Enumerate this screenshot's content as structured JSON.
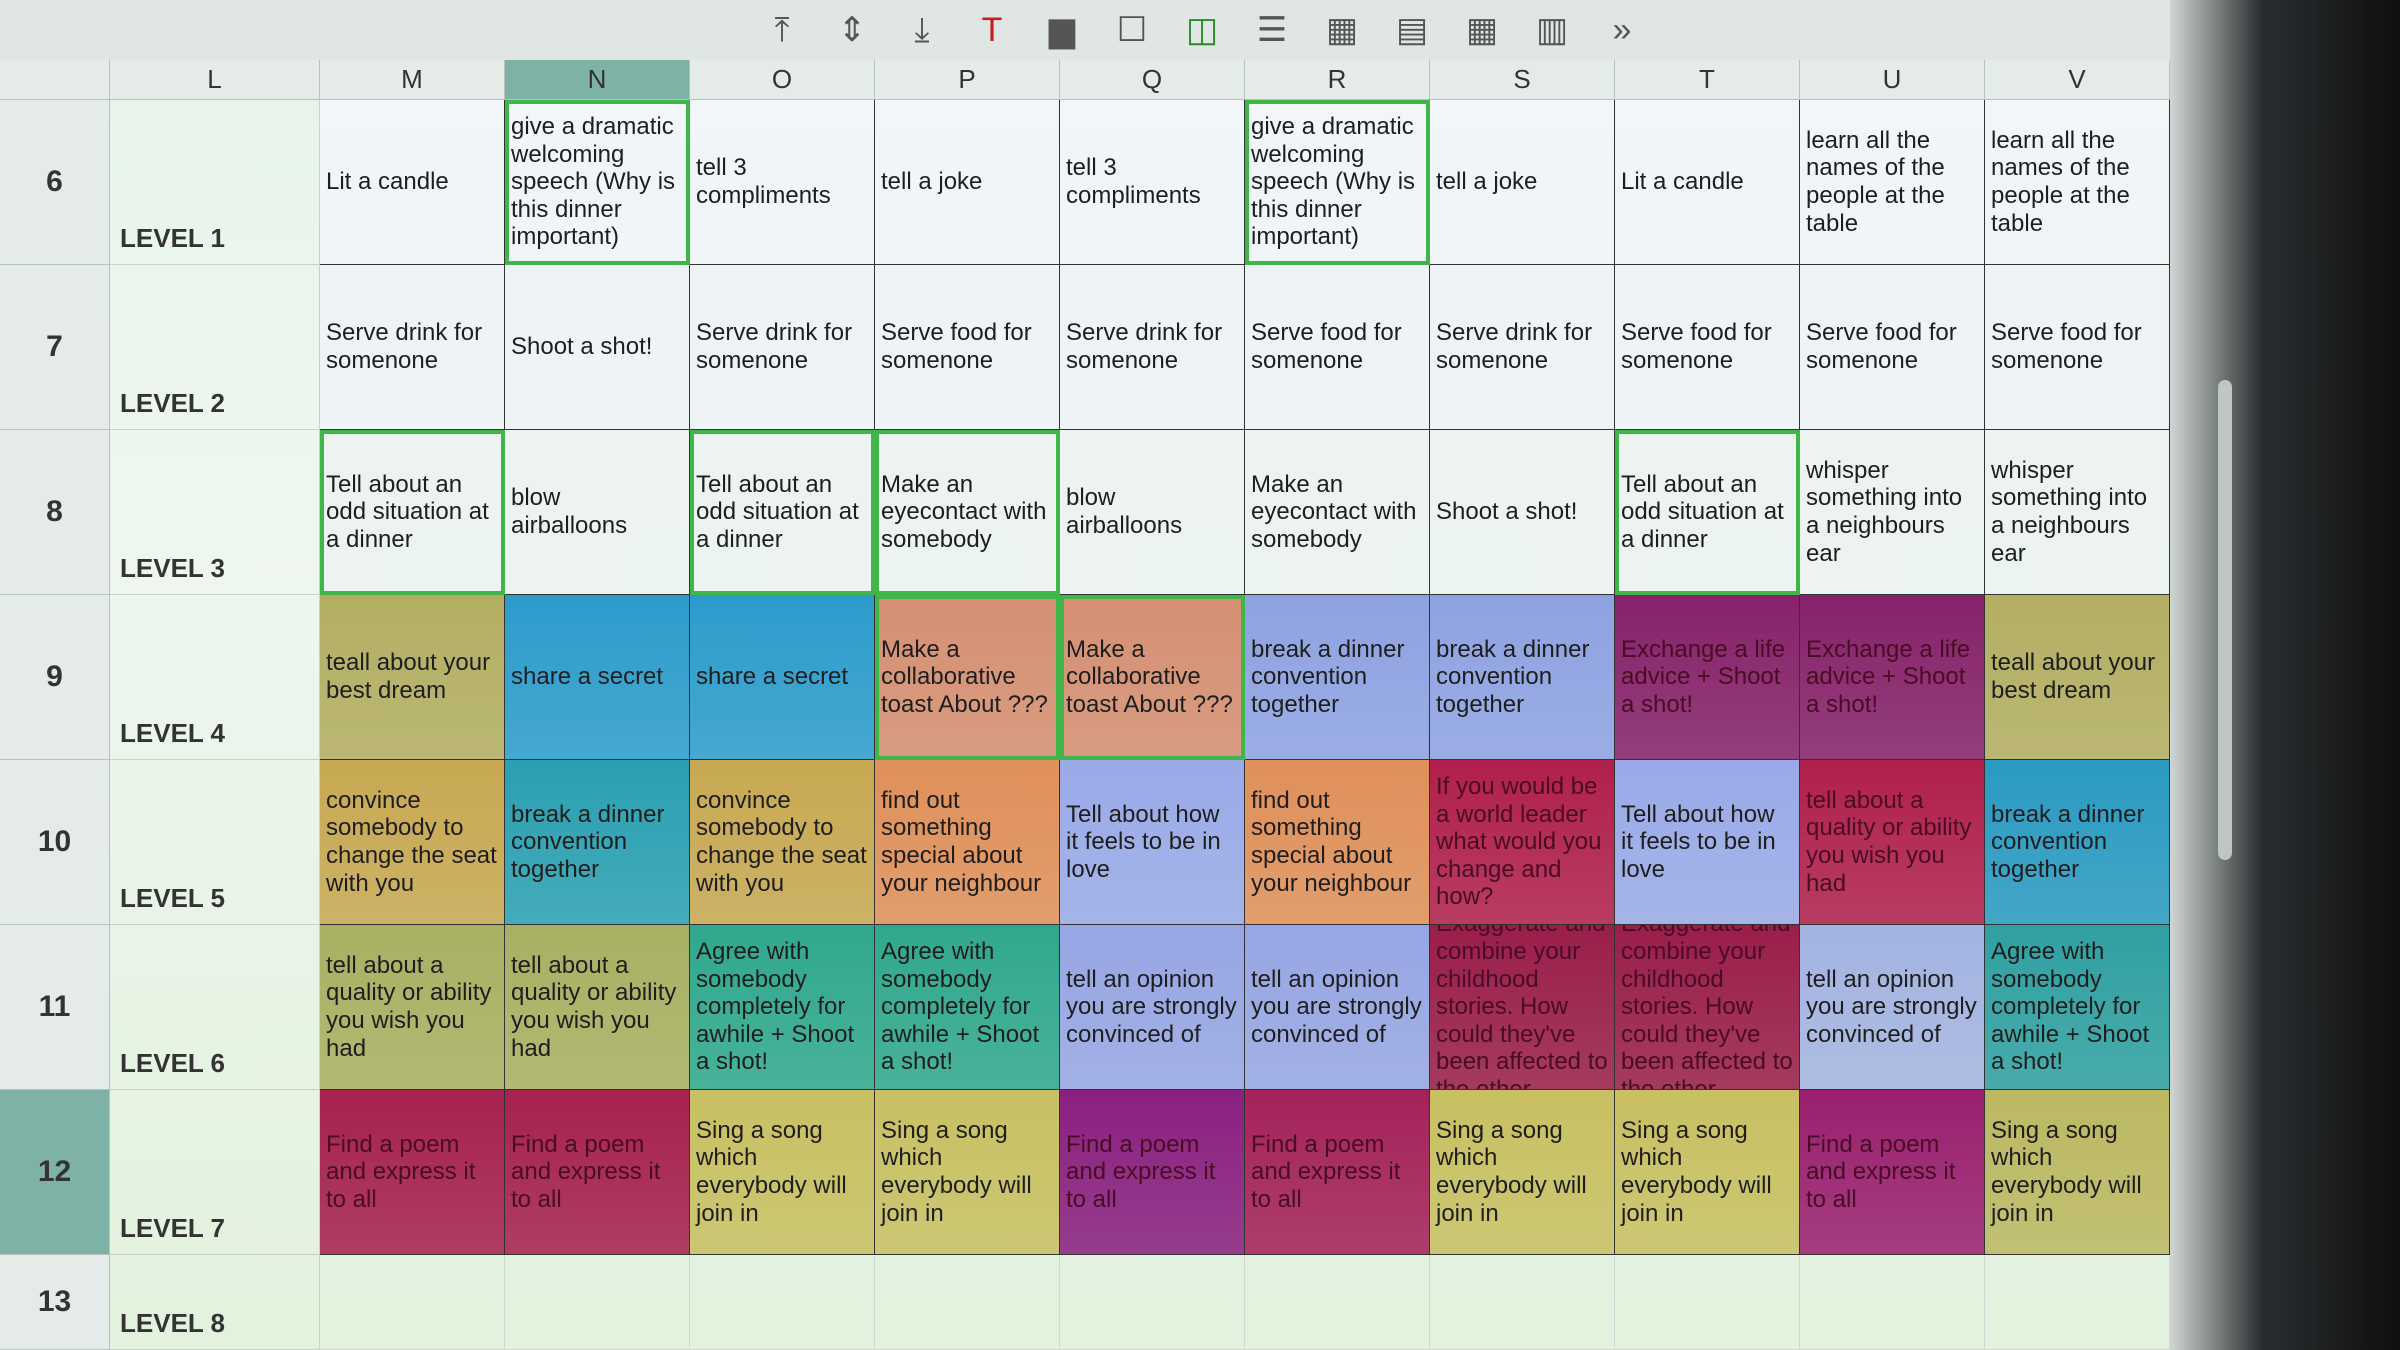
{
  "toolbar": {
    "icons": [
      "align-top-icon",
      "align-middle-icon",
      "align-bottom-icon",
      "font-color-icon",
      "fill-color-icon",
      "borders-icon",
      "border-color-icon",
      "border-style-icon",
      "table-icon",
      "freeze-icon",
      "grid-icon",
      "sheet-icon",
      "more-icon"
    ]
  },
  "columns": [
    "L",
    "M",
    "N",
    "O",
    "P",
    "Q",
    "R",
    "S",
    "T",
    "U",
    "V"
  ],
  "selected_column": "N",
  "rows": [
    {
      "num": "6",
      "level": "LEVEL 1",
      "cells": [
        {
          "text": "Lit a candle",
          "bg": "#f1f6f8"
        },
        {
          "text": "give a dramatic welcoming speech (Why is this dinner important)",
          "bg": "#f1f6f8",
          "sel": true
        },
        {
          "text": "tell 3 compliments",
          "bg": "#f1f6f8"
        },
        {
          "text": "tell a joke",
          "bg": "#f1f6f8"
        },
        {
          "text": "tell 3 compliments",
          "bg": "#f1f6f8"
        },
        {
          "text": "give a dramatic welcoming speech (Why is this dinner important)",
          "bg": "#f1f6f8",
          "sel": true
        },
        {
          "text": "tell a joke",
          "bg": "#f1f6f8"
        },
        {
          "text": "Lit a candle",
          "bg": "#f1f6f8"
        },
        {
          "text": "learn all the names of the people at the table",
          "bg": "#f1f6f8"
        },
        {
          "text": "learn all the names of the people at the table",
          "bg": "#f1f6f8"
        }
      ]
    },
    {
      "num": "7",
      "level": "LEVEL 2",
      "cells": [
        {
          "text": "Serve drink for somenone",
          "bg": "#eef4f6"
        },
        {
          "text": "Shoot a shot!",
          "bg": "#eef4f6"
        },
        {
          "text": "Serve drink for somenone",
          "bg": "#eef4f6"
        },
        {
          "text": "Serve food for somenone",
          "bg": "#eef4f6"
        },
        {
          "text": "Serve drink for somenone",
          "bg": "#eef4f6"
        },
        {
          "text": "Serve food for somenone",
          "bg": "#eef4f6"
        },
        {
          "text": "Serve drink for somenone",
          "bg": "#eef4f6"
        },
        {
          "text": "Serve food for somenone",
          "bg": "#eef4f6"
        },
        {
          "text": "Serve food for somenone",
          "bg": "#eef4f6"
        },
        {
          "text": "Serve food for somenone",
          "bg": "#eef4f6"
        }
      ]
    },
    {
      "num": "8",
      "level": "LEVEL 3",
      "cells": [
        {
          "text": "Tell about an odd situation at a dinner",
          "bg": "#ecf3f1",
          "sel": true
        },
        {
          "text": "blow airballoons",
          "bg": "#ecf3f1"
        },
        {
          "text": "Tell about an odd situation at a dinner",
          "bg": "#ecf3f1",
          "sel": true
        },
        {
          "text": "Make an eyecontact with somebody",
          "bg": "#ecf3f1",
          "sel": true
        },
        {
          "text": "blow airballoons",
          "bg": "#ecf3f1"
        },
        {
          "text": "Make an eyecontact with somebody",
          "bg": "#ecf3f1"
        },
        {
          "text": "Shoot a shot!",
          "bg": "#ecf3f1"
        },
        {
          "text": "Tell about an odd situation at a dinner",
          "bg": "#ecf3f1",
          "sel": true
        },
        {
          "text": "whisper something into a neighbours ear",
          "bg": "#ecf3f1"
        },
        {
          "text": "whisper something into a neighbours ear",
          "bg": "#ecf3f1"
        }
      ]
    },
    {
      "num": "9",
      "level": "LEVEL 4",
      "cells": [
        {
          "text": "teall about your best dream",
          "bg": "#b3ae62"
        },
        {
          "text": "share a secret",
          "bg": "#2c9ccc"
        },
        {
          "text": "share a secret",
          "bg": "#2c9ccc"
        },
        {
          "text": "Make a collaborative toast About ???",
          "bg": "#d58f72",
          "sel": true
        },
        {
          "text": "Make a collaborative toast About ???",
          "bg": "#d58f72",
          "sel": true
        },
        {
          "text": "break a dinner convention together",
          "bg": "#8ea2e2"
        },
        {
          "text": "break a dinner convention together",
          "bg": "#8ea2e2"
        },
        {
          "text": "Exchange a life advice + Shoot a shot!",
          "bg": "#86226a",
          "dark": true
        },
        {
          "text": "Exchange a life advice + Shoot a shot!",
          "bg": "#86226a",
          "dark": true
        },
        {
          "text": "teall about your best dream",
          "bg": "#b3ae62"
        }
      ]
    },
    {
      "num": "10",
      "level": "LEVEL 5",
      "cells": [
        {
          "text": "convince somebody to change the seat with you",
          "bg": "#c8a852"
        },
        {
          "text": "break a dinner convention together",
          "bg": "#2aa0b2"
        },
        {
          "text": "convince somebody to change the seat with you",
          "bg": "#c8a852"
        },
        {
          "text": "find out something special about your neighbour",
          "bg": "#e0905a"
        },
        {
          "text": "Tell about how it feels to be in love",
          "bg": "#9aaae8"
        },
        {
          "text": "find out something special about your neighbour",
          "bg": "#e0905a"
        },
        {
          "text": "If you would be a world leader what would you change and how?",
          "bg": "#b0204c",
          "dark": true
        },
        {
          "text": "Tell about how it feels to be in love",
          "bg": "#9aaae8"
        },
        {
          "text": "tell about a quality or ability you wish you had",
          "bg": "#b0204c",
          "dark": true
        },
        {
          "text": "break a dinner convention together",
          "bg": "#2a9ac2"
        }
      ]
    },
    {
      "num": "11",
      "level": "LEVEL 6",
      "cells": [
        {
          "text": "tell about a quality or ability you wish you had",
          "bg": "#a9b062"
        },
        {
          "text": "tell about a quality or ability you wish you had",
          "bg": "#a9b062"
        },
        {
          "text": "Agree with somebody completely for awhile + Shoot a shot!",
          "bg": "#30a88e"
        },
        {
          "text": "Agree with somebody completely for awhile + Shoot a shot!",
          "bg": "#30a88e"
        },
        {
          "text": "tell an opinion you are strongly convinced of",
          "bg": "#97a6e4"
        },
        {
          "text": "tell an opinion you are strongly convinced of",
          "bg": "#97a6e4"
        },
        {
          "text": "Exaggerate and combine your childhood stories. How could they've been affected to the other",
          "bg": "#9a1e4a",
          "dark": true
        },
        {
          "text": "Exaggerate and combine your childhood stories. How could they've been affected to the other",
          "bg": "#9a1e4a",
          "dark": true
        },
        {
          "text": "tell an opinion you are strongly convinced of",
          "bg": "#a4b4e2"
        },
        {
          "text": "Agree with somebody completely for awhile + Shoot a shot!",
          "bg": "#30a0a2"
        }
      ]
    },
    {
      "num": "12",
      "level": "LEVEL 7",
      "cells": [
        {
          "text": "Find a poem and express it to all",
          "bg": "#a6214f",
          "dark": true
        },
        {
          "text": "Find a poem and express it to all",
          "bg": "#a6214f",
          "dark": true
        },
        {
          "text": "Sing a song which everybody will join in",
          "bg": "#c8c062"
        },
        {
          "text": "Sing a song which everybody will join in",
          "bg": "#c8c062"
        },
        {
          "text": "Find a poem and express it to all",
          "bg": "#8a2080",
          "dark": true
        },
        {
          "text": "Find a poem and express it to all",
          "bg": "#a4225a",
          "dark": true
        },
        {
          "text": "Sing a song which everybody will join in",
          "bg": "#c8c062"
        },
        {
          "text": "Sing a song which everybody will join in",
          "bg": "#c8c062"
        },
        {
          "text": "Find a poem and express it to all",
          "bg": "#9a2070",
          "dark": true
        },
        {
          "text": "Sing a song which everybody will join in",
          "bg": "#bcb862"
        }
      ]
    },
    {
      "num": "13",
      "level": "LEVEL 8",
      "cells": [
        {
          "text": ""
        },
        {
          "text": ""
        },
        {
          "text": ""
        },
        {
          "text": ""
        },
        {
          "text": ""
        },
        {
          "text": ""
        },
        {
          "text": ""
        },
        {
          "text": ""
        },
        {
          "text": ""
        },
        {
          "text": ""
        }
      ]
    }
  ],
  "selected_row": "12"
}
